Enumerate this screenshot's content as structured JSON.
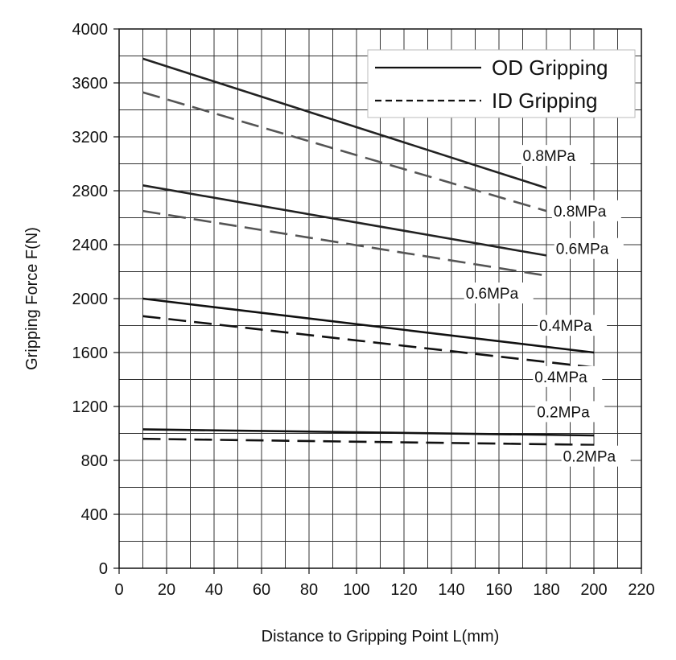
{
  "chart_data": {
    "type": "line",
    "xlabel": "Distance to Gripping Point  L(mm)",
    "ylabel": "Gripping Force  F(N)",
    "xlim": [
      0,
      220
    ],
    "ylim": [
      0,
      4000
    ],
    "x_ticks": [
      0,
      20,
      40,
      60,
      80,
      100,
      120,
      140,
      160,
      180,
      200,
      220
    ],
    "y_ticks": [
      0,
      400,
      800,
      1200,
      1600,
      2000,
      2400,
      2800,
      3200,
      3600,
      4000
    ],
    "grid": true,
    "legend": {
      "position": "top-right",
      "entries": [
        {
          "label": "OD Gripping",
          "style": "solid"
        },
        {
          "label": "ID Gripping",
          "style": "dashed"
        }
      ]
    },
    "series": [
      {
        "group": "OD Gripping",
        "style": "solid",
        "label": "0.8MPa",
        "color": "#222222",
        "x": [
          10,
          180
        ],
        "y": [
          3780,
          2820
        ]
      },
      {
        "group": "ID Gripping",
        "style": "dashed",
        "label": "0.8MPa",
        "color": "#555555",
        "x": [
          10,
          180
        ],
        "y": [
          3530,
          2650
        ]
      },
      {
        "group": "OD Gripping",
        "style": "solid",
        "label": "0.6MPa",
        "color": "#222222",
        "x": [
          10,
          180
        ],
        "y": [
          2840,
          2320
        ]
      },
      {
        "group": "ID Gripping",
        "style": "dashed",
        "label": "0.6MPa",
        "color": "#555555",
        "x": [
          10,
          180
        ],
        "y": [
          2650,
          2170
        ]
      },
      {
        "group": "OD Gripping",
        "style": "solid",
        "label": "0.4MPa",
        "color": "#111111",
        "x": [
          10,
          200
        ],
        "y": [
          2000,
          1600
        ]
      },
      {
        "group": "ID Gripping",
        "style": "dashed",
        "label": "0.4MPa",
        "color": "#111111",
        "x": [
          10,
          200
        ],
        "y": [
          1870,
          1490
        ]
      },
      {
        "group": "OD Gripping",
        "style": "solid",
        "label": "0.2MPa",
        "color": "#111111",
        "x": [
          10,
          200
        ],
        "y": [
          1030,
          985
        ]
      },
      {
        "group": "ID Gripping",
        "style": "dashed",
        "label": "0.2MPa",
        "color": "#111111",
        "x": [
          10,
          200
        ],
        "y": [
          960,
          915
        ]
      }
    ]
  }
}
